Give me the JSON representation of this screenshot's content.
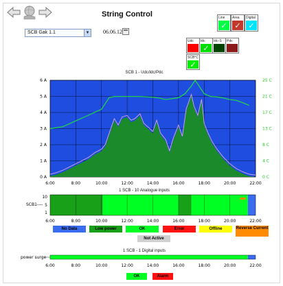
{
  "header": {
    "title": "String Control",
    "back_icon": "left-arrow-icon",
    "home_icon": "globe-hand-icon",
    "forward_icon": "right-arrow-icon"
  },
  "controls": {
    "device_select": "SCB Gak 1.1",
    "date": "06.06.12"
  },
  "view_mode": {
    "options": [
      {
        "label": "Line",
        "color": "#00ff44",
        "checked": true
      },
      {
        "label": "Area",
        "color": "#c0392b",
        "checked": true
      },
      {
        "label": "Digital",
        "color": "#00e5ff",
        "checked": true
      }
    ]
  },
  "series_toggles": {
    "items": [
      {
        "label": "Udc",
        "color": "#ff0000",
        "checked": false
      },
      {
        "label": "Idc",
        "color": "#00dd00",
        "checked": true
      },
      {
        "label": "Idc-S",
        "color": "#004400",
        "checked": false
      },
      {
        "label": "Pdc",
        "color": "#8b1a1a",
        "checked": false
      },
      {
        "label": "SCB°C",
        "color": "#00ee00",
        "checked": true
      }
    ]
  },
  "colors": {
    "plot_bg": "#1f4de0",
    "temp_line": "#22dd44",
    "current_fill": "#1a8a2a",
    "current_line": "#d9a8e0"
  },
  "chart_data": [
    {
      "type": "line",
      "title": "SCB 1 - Udc/Idc/Pdc",
      "xlabel": "",
      "ylabel": "",
      "x_ticks": [
        "6:00",
        "8:00",
        "10:00",
        "12:00",
        "14:00",
        "16:00",
        "18:00",
        "20:00",
        "22:00"
      ],
      "y_ticks_left": [
        "6 A",
        "5 A",
        "4 A",
        "3 A",
        "2 A",
        "1 A",
        "0 A"
      ],
      "y_ticks_right": [
        "25 C",
        "21 C",
        "17 C",
        "13 C",
        "8 C",
        "4 C",
        "0 C"
      ],
      "ylim_left": [
        0,
        6
      ],
      "ylim_right": [
        0,
        25
      ],
      "series": [
        {
          "name": "Idc",
          "axis": "left",
          "x": [
            6,
            6.5,
            7,
            7.5,
            8,
            8.5,
            9,
            9.5,
            10,
            10.3,
            10.6,
            11,
            11.3,
            11.6,
            12,
            12.3,
            12.6,
            13,
            13.3,
            13.6,
            14,
            14.3,
            14.6,
            15,
            15.3,
            15.6,
            16,
            16.3,
            16.6,
            17,
            17.2,
            17.5,
            17.8,
            18,
            18.3,
            18.6,
            19,
            19.5,
            20,
            20.5,
            21,
            21.5,
            22
          ],
          "y": [
            0.05,
            0.15,
            0.3,
            0.5,
            0.7,
            0.9,
            1.1,
            1.4,
            1.6,
            1.9,
            2.6,
            3.5,
            3.1,
            3.6,
            3.7,
            3.4,
            3.5,
            3.8,
            3.2,
            3.0,
            2.7,
            3.4,
            2.6,
            2.2,
            1.5,
            2.3,
            3.1,
            2.4,
            4.1,
            5.0,
            4.3,
            3.7,
            4.7,
            3.2,
            2.6,
            2.1,
            1.6,
            1.1,
            0.7,
            0.4,
            0.2,
            0.05,
            0.0
          ]
        },
        {
          "name": "SCB°C",
          "axis": "right",
          "x": [
            6,
            7,
            8,
            9,
            10,
            10.3,
            10.6,
            11,
            12,
            13,
            14,
            14.5,
            15,
            16,
            16.5,
            17,
            17.3,
            17.6,
            18,
            18.5,
            19,
            19.5,
            20,
            20.5,
            21,
            21.5
          ],
          "y": [
            12.5,
            13.0,
            14.5,
            16.0,
            17.5,
            19.0,
            20.5,
            20.8,
            20.8,
            20.8,
            20.6,
            20.4,
            20.0,
            20.5,
            21.5,
            23.5,
            25.0,
            23.5,
            21.5,
            20.8,
            20.7,
            20.4,
            20.0,
            19.8,
            19.2,
            18.5
          ]
        }
      ]
    },
    {
      "type": "heatmap",
      "title": "1 SCB - 10 Analogue inputs",
      "row_label": "SCB1----",
      "y_ticks": [
        "10",
        "5",
        "1"
      ],
      "x_ticks": [
        "6:00",
        "8:00",
        "10:00",
        "12:00",
        "14:00",
        "16:00",
        "18:00",
        "20:00",
        "22:00"
      ],
      "segments": [
        {
          "from": 6.0,
          "to": 10.1,
          "status": "Low power"
        },
        {
          "from": 10.1,
          "to": 16.0,
          "status": "OK"
        },
        {
          "from": 16.0,
          "to": 17.0,
          "status": "Low power"
        },
        {
          "from": 17.0,
          "to": 21.4,
          "status": "OK"
        },
        {
          "from": 21.4,
          "to": 22.0,
          "status": "No Data"
        }
      ]
    },
    {
      "type": "bar",
      "title": "1 SCB - 1 Digital inputs",
      "row_label": "power surge",
      "x_ticks": [
        "6:00",
        "8:00",
        "10:00",
        "12:00",
        "14:00",
        "16:00",
        "18:00",
        "20:00",
        "22:00"
      ],
      "segments": [
        {
          "from": 6.0,
          "to": 21.4,
          "status": "OK"
        },
        {
          "from": 21.4,
          "to": 22.0,
          "status": "No Data"
        }
      ]
    }
  ],
  "analogue_legend": [
    {
      "label": "No Data",
      "color": "#3a6cf0",
      "text_color": "#000000"
    },
    {
      "label": "Low power",
      "color": "#18a018",
      "text_color": "#000000"
    },
    {
      "label": "OK",
      "color": "#00ff22",
      "text_color": "#000000"
    },
    {
      "label": "Error",
      "color": "#ff1111",
      "text_color": "#000000"
    },
    {
      "label": "Offline",
      "color": "#ffff00",
      "text_color": "#000000"
    },
    {
      "label": "Reverse Current",
      "color": "#ff8c00",
      "text_color": "#000000"
    },
    {
      "label": "Not Active",
      "color": "#d0d0d0",
      "text_color": "#000000"
    }
  ],
  "digital_legend": [
    {
      "label": "OK",
      "color": "#00ff22",
      "text_color": "#000000"
    },
    {
      "label": "Alarm",
      "color": "#ff1111",
      "text_color": "#000000"
    }
  ]
}
